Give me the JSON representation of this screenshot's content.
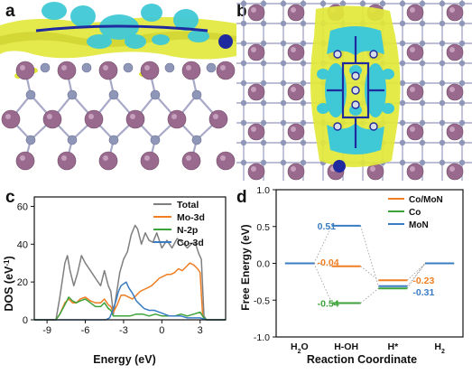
{
  "figure": {
    "panel_labels": [
      "a",
      "b",
      "c",
      "d"
    ]
  },
  "colors": {
    "mo_atom": "#9a6a8e",
    "n_atom": "#8f97b8",
    "bond": "#a8a8c8",
    "yellow_density": "#e2e838",
    "cyan_density": "#3fc8d6",
    "co_atom": "#1f2a9e",
    "total": "#7f7f7f",
    "mo3d": "#f07e22",
    "n2p": "#3da23a",
    "co3d": "#3a7cc2"
  },
  "chart_data": [
    {
      "type": "line",
      "panel": "c",
      "xlabel": "Energy (eV)",
      "ylabel": "DOS (eV",
      "ylabel_sup": "-1",
      "ylabel_end": ")",
      "xlim": [
        -10,
        5
      ],
      "ylim": [
        0,
        65
      ],
      "xticks": [
        -9,
        -6,
        -3,
        0,
        3
      ],
      "xtick_labels": [
        "-9",
        "-6",
        "-3",
        "0",
        "3"
      ],
      "yticks": [
        0,
        20,
        40,
        60
      ],
      "ytick_labels": [
        "0",
        "20",
        "40",
        "60"
      ],
      "legend": "top-right",
      "series": [
        {
          "name": "Total",
          "color": "#7f7f7f",
          "x": [
            -10,
            -8.3,
            -8.0,
            -7.6,
            -7.4,
            -7.2,
            -6.9,
            -6.6,
            -6.3,
            -6.0,
            -5.6,
            -5.2,
            -4.8,
            -4.5,
            -4.2,
            -4.0,
            -3.8,
            -3.6,
            -3.3,
            -3.0,
            -2.7,
            -2.4,
            -2.1,
            -1.9,
            -1.6,
            -1.3,
            -1.0,
            -0.7,
            -0.4,
            0.0,
            0.4,
            0.8,
            1.2,
            1.6,
            2.0,
            2.3,
            2.6,
            2.9,
            3.1,
            3.3,
            3.5,
            5
          ],
          "y": [
            0,
            0,
            12,
            30,
            34,
            26,
            18,
            25,
            34,
            30,
            26,
            22,
            18,
            26,
            18,
            15,
            3,
            12,
            25,
            32,
            36,
            45,
            50,
            48,
            40,
            46,
            42,
            41,
            46,
            38,
            42,
            38,
            43,
            41,
            38,
            40,
            41,
            35,
            32,
            2,
            0,
            0
          ]
        },
        {
          "name": "Mo-3d",
          "color": "#f07e22",
          "x": [
            -10,
            -8.3,
            -8.0,
            -7.6,
            -7.3,
            -7.0,
            -6.7,
            -6.4,
            -6.0,
            -5.6,
            -5.2,
            -4.8,
            -4.5,
            -4.2,
            -4.0,
            -3.8,
            -3.5,
            -3.2,
            -2.9,
            -2.6,
            -2.3,
            -2.0,
            -1.7,
            -1.4,
            -1.1,
            -0.8,
            -0.5,
            -0.2,
            0.1,
            0.4,
            0.7,
            1.0,
            1.3,
            1.6,
            1.9,
            2.2,
            2.5,
            2.8,
            3.0,
            3.2,
            3.4,
            5
          ],
          "y": [
            0,
            0,
            3,
            9,
            11,
            9,
            9,
            11,
            12,
            10,
            9,
            9,
            11,
            8,
            7,
            4,
            8,
            13,
            13,
            12,
            11,
            13,
            15,
            16,
            17,
            18,
            20,
            22,
            23,
            24,
            24,
            25,
            27,
            26,
            28,
            30,
            29,
            27,
            25,
            2,
            0,
            0
          ]
        },
        {
          "name": "N-2p",
          "color": "#3da23a",
          "x": [
            -10,
            -8.3,
            -8.0,
            -7.6,
            -7.3,
            -7.0,
            -6.7,
            -6.4,
            -6.0,
            -5.6,
            -5.2,
            -4.8,
            -4.5,
            -4.2,
            -4.0,
            -3.8,
            -3.4,
            -3.0,
            -2.5,
            -2.0,
            -1.5,
            -1.0,
            -0.5,
            0.0,
            0.5,
            1.0,
            1.5,
            2.0,
            2.5,
            3.0,
            3.3,
            3.5,
            5
          ],
          "y": [
            0,
            0,
            3,
            8,
            12,
            10,
            9,
            10,
            11,
            9,
            7,
            7,
            9,
            6,
            5,
            2,
            2,
            2,
            2,
            3,
            3,
            2,
            3,
            2,
            2,
            2,
            3,
            2,
            3,
            4,
            1,
            0,
            0
          ]
        },
        {
          "name": "Co-3d",
          "color": "#3a7cc2",
          "x": [
            -10,
            -8.3,
            -6,
            -5.2,
            -4.8,
            -4.4,
            -4.1,
            -3.9,
            -3.6,
            -3.4,
            -3.2,
            -3.0,
            -2.8,
            -2.6,
            -2.3,
            -2.0,
            -1.7,
            -1.4,
            -1.0,
            -0.6,
            -0.2,
            0.2,
            0.6,
            1.0,
            1.5,
            2.0,
            2.5,
            3.0,
            3.5,
            5
          ],
          "y": [
            0,
            0,
            0,
            0,
            0,
            0,
            1,
            4,
            10,
            15,
            18,
            19,
            20,
            17,
            14,
            10,
            8,
            6,
            5,
            5,
            4,
            3,
            2,
            2,
            2,
            1,
            1,
            1,
            0,
            0
          ]
        }
      ]
    },
    {
      "type": "line",
      "panel": "d",
      "xlabel": "Reaction Coordinate",
      "ylabel": "Free Energy (eV)",
      "ylim": [
        -1.0,
        1.0
      ],
      "yticks": [
        -1.0,
        -0.5,
        0.0,
        0.5,
        1.0
      ],
      "ytick_labels": [
        "-1.0",
        "-0.5",
        "0.0",
        "0.5",
        "1.0"
      ],
      "categories": [
        "H2O",
        "H-OH",
        "H*",
        "H2"
      ],
      "category_labels": [
        {
          "main": "H",
          "sub": "2",
          "rest": "O"
        },
        {
          "main": "H-OH",
          "sub": "",
          "rest": ""
        },
        {
          "main": "H*",
          "sub": "",
          "rest": ""
        },
        {
          "main": "H",
          "sub": "2",
          "rest": ""
        }
      ],
      "legend": "top-right",
      "series": [
        {
          "name": "Co/MoN",
          "color": "#f07e22",
          "values": [
            0,
            -0.04,
            -0.23,
            0
          ]
        },
        {
          "name": "Co",
          "color": "#3da23a",
          "values": [
            0,
            -0.54,
            -0.34,
            0
          ]
        },
        {
          "name": "MoN",
          "color": "#3a7cc2",
          "values": [
            0,
            0.51,
            -0.31,
            0
          ]
        }
      ],
      "data_labels": [
        {
          "text": "0.51",
          "color": "#3a7cc2"
        },
        {
          "text": "-0.04",
          "color": "#f07e22"
        },
        {
          "text": "-0.54",
          "color": "#3da23a"
        },
        {
          "text": "-0.23",
          "color": "#f07e22"
        },
        {
          "text": "-0.31",
          "color": "#3a7cc2"
        }
      ]
    }
  ]
}
